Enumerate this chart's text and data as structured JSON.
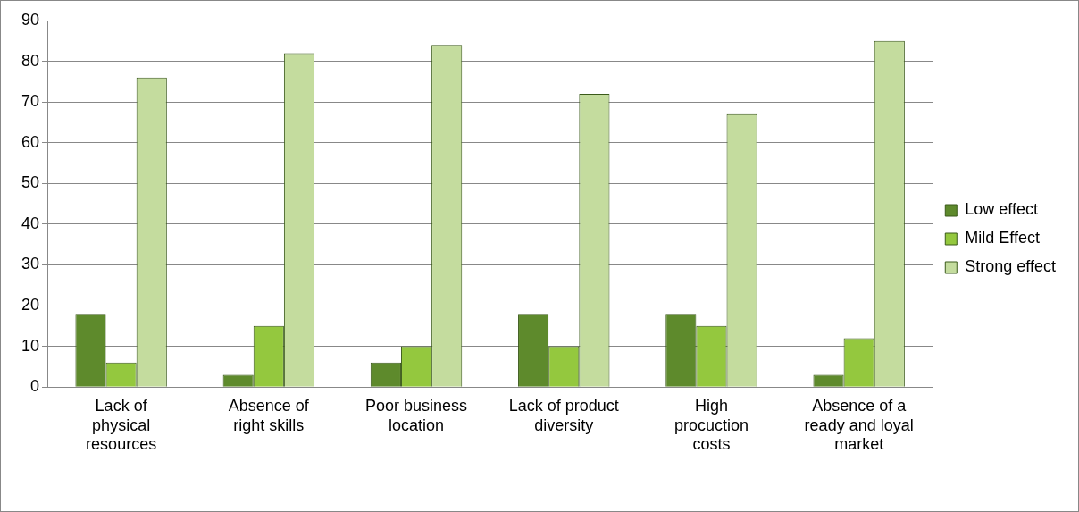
{
  "chart_data": {
    "type": "bar",
    "categories": [
      "Lack of physical resources",
      "Absence of right skills",
      "Poor business location",
      "Lack of product diversity",
      "High procuction costs",
      "Absence of a ready and loyal market"
    ],
    "series": [
      {
        "name": "Low effect",
        "color": "#5e8a2c",
        "values": [
          18,
          3,
          6,
          18,
          18,
          3
        ]
      },
      {
        "name": "Mild Effect",
        "color": "#94c83e",
        "values": [
          6,
          15,
          10,
          10,
          15,
          12
        ]
      },
      {
        "name": "Strong effect",
        "color": "#c4dc9e",
        "values": [
          76,
          82,
          84,
          72,
          67,
          85
        ]
      }
    ],
    "ylim": [
      0,
      90
    ],
    "yticks": [
      0,
      10,
      20,
      30,
      40,
      50,
      60,
      70,
      80,
      90
    ],
    "grid": "y",
    "legend": "right"
  }
}
